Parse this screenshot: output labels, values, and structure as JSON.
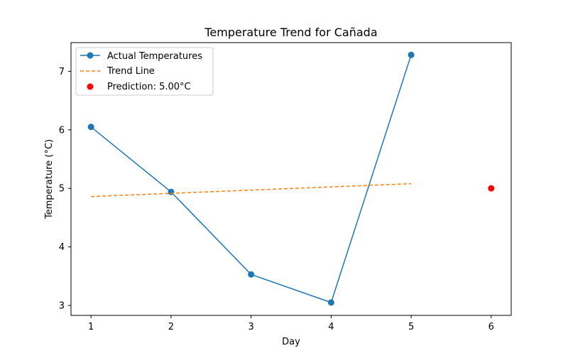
{
  "chart_data": {
    "type": "line",
    "title": "Temperature Trend for Cañada",
    "xlabel": "Day",
    "ylabel": "Temperature (°C)",
    "xlim": [
      0.75,
      6.25
    ],
    "ylim": [
      2.83,
      7.49
    ],
    "x_ticks": [
      1,
      2,
      3,
      4,
      5,
      6
    ],
    "y_ticks": [
      3,
      4,
      5,
      6,
      7
    ],
    "grid": false,
    "legend_position": "top-left",
    "series": [
      {
        "name": "Actual Temperatures",
        "style": "solid-line-with-circle-markers",
        "color": "#1f77b4",
        "x": [
          1,
          2,
          3,
          4,
          5
        ],
        "y": [
          6.05,
          4.94,
          3.53,
          3.05,
          7.28
        ]
      },
      {
        "name": "Trend Line",
        "style": "dashed-line",
        "color": "#ff7f0e",
        "x": [
          1,
          5
        ],
        "y": [
          4.86,
          5.08
        ]
      },
      {
        "name": "Prediction: 5.00°C",
        "style": "scatter-point",
        "color": "#ff0000",
        "x": [
          6
        ],
        "y": [
          5.0
        ]
      }
    ]
  }
}
